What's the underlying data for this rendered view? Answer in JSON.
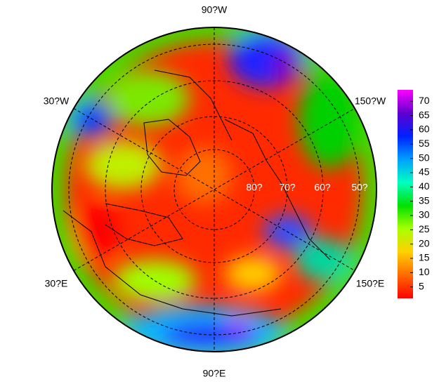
{
  "map": {
    "longitude_labels": {
      "top": "90?W",
      "upper_left": "30?W",
      "upper_right": "150?W",
      "lower_left": "30?E",
      "lower_right": "150?E",
      "bottom": "90?E"
    },
    "latitude_labels": [
      "80?",
      "70?",
      "60?",
      "50?"
    ]
  },
  "colorbar": {
    "range": [
      1,
      74
    ],
    "ticks": [
      5,
      10,
      15,
      20,
      25,
      30,
      35,
      40,
      45,
      50,
      55,
      60,
      65,
      70
    ],
    "colors": [
      "#ff0000",
      "#ff6a00",
      "#ffd000",
      "#a8ff00",
      "#00e000",
      "#00ffc0",
      "#00a0ff",
      "#0020ff",
      "#6000d0",
      "#ff00ff"
    ]
  }
}
